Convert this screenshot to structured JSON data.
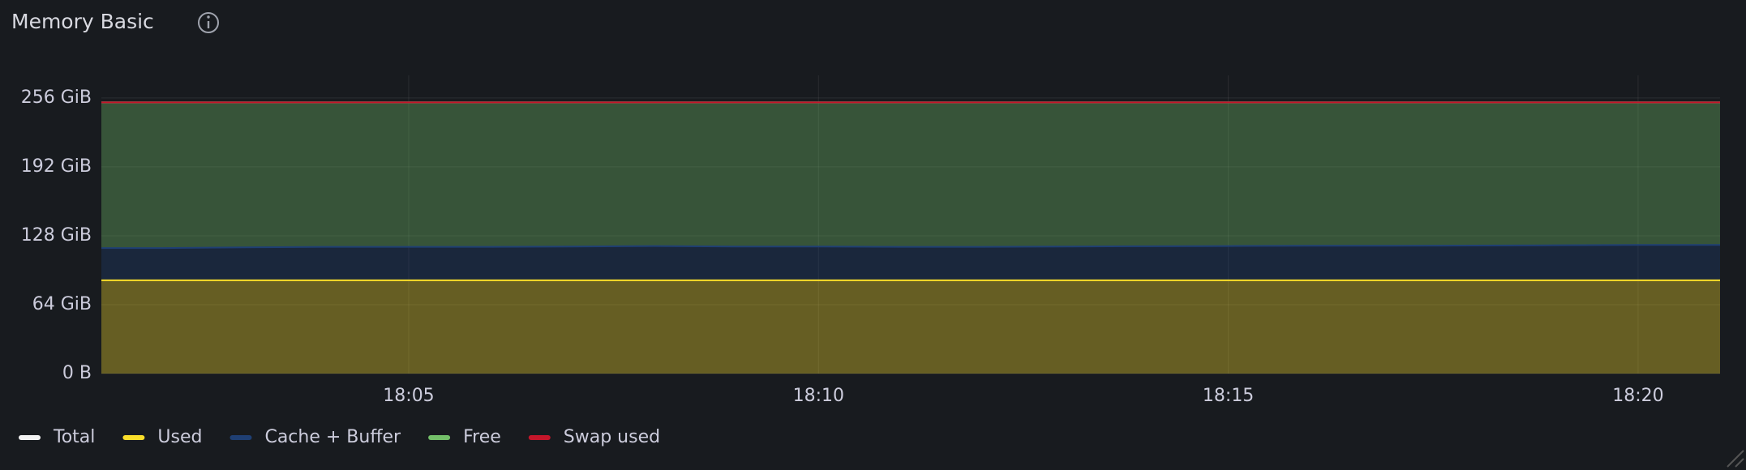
{
  "chart_data": {
    "type": "stacked-area",
    "title": "Memory Basic",
    "x": [
      "18:01:15",
      "18:02",
      "18:03",
      "18:04",
      "18:05",
      "18:06",
      "18:07",
      "18:08",
      "18:09",
      "18:10",
      "18:11",
      "18:12",
      "18:13",
      "18:14",
      "18:15",
      "18:16",
      "18:17",
      "18:18",
      "18:19",
      "18:20",
      "18:21"
    ],
    "xlim": [
      "18:01:15",
      "18:21"
    ],
    "xticks": [
      "18:05",
      "18:10",
      "18:15",
      "18:20"
    ],
    "ylim": [
      0,
      277
    ],
    "yticks": [
      {
        "value": 0,
        "label": "0 B"
      },
      {
        "value": 64,
        "label": "64 GiB"
      },
      {
        "value": 128,
        "label": "128 GiB"
      },
      {
        "value": 192,
        "label": "192 GiB"
      },
      {
        "value": 256,
        "label": "256 GiB"
      }
    ],
    "grid": true,
    "legend": "bottom",
    "series": [
      {
        "name": "Total",
        "color": "#f2f2f2",
        "stacked": false,
        "values": [
          251.9,
          251.9,
          251.9,
          251.9,
          251.9,
          251.9,
          251.9,
          251.9,
          251.9,
          251.9,
          251.9,
          251.9,
          251.9,
          251.9,
          251.9,
          251.9,
          251.9,
          251.9,
          251.9,
          251.9,
          251.9
        ]
      },
      {
        "name": "Used",
        "color": "#fade2a",
        "stacked": true,
        "values": [
          86.7,
          86.7,
          86.7,
          86.7,
          86.7,
          86.7,
          86.7,
          86.7,
          86.7,
          86.7,
          86.7,
          86.7,
          86.7,
          86.7,
          86.7,
          86.7,
          86.7,
          86.7,
          86.7,
          86.7,
          86.7
        ]
      },
      {
        "name": "Cache + Buffer",
        "color": "#1f3f73",
        "stacked": true,
        "values": [
          29.9,
          29.9,
          30.5,
          31,
          31,
          31,
          31.3,
          31.8,
          31.3,
          31.3,
          31,
          31,
          31.3,
          31.6,
          31.8,
          32,
          32,
          32.2,
          32.5,
          32.8,
          32.8
        ]
      },
      {
        "name": "Free",
        "color": "#73bf69",
        "stacked": true,
        "values": [
          135.3,
          135.3,
          134.7,
          134.2,
          134.2,
          134.2,
          133.9,
          133.4,
          133.9,
          133.9,
          134.2,
          134.2,
          133.9,
          133.6,
          133.4,
          133.2,
          133.2,
          133,
          132.7,
          132.4,
          132.4
        ]
      },
      {
        "name": "Swap used",
        "color": "#c4162a",
        "stacked": true,
        "values": [
          0,
          0,
          0,
          0,
          0,
          0,
          0,
          0,
          0,
          0,
          0,
          0,
          0,
          0,
          0,
          0,
          0,
          0,
          0,
          0,
          0
        ]
      }
    ]
  }
}
